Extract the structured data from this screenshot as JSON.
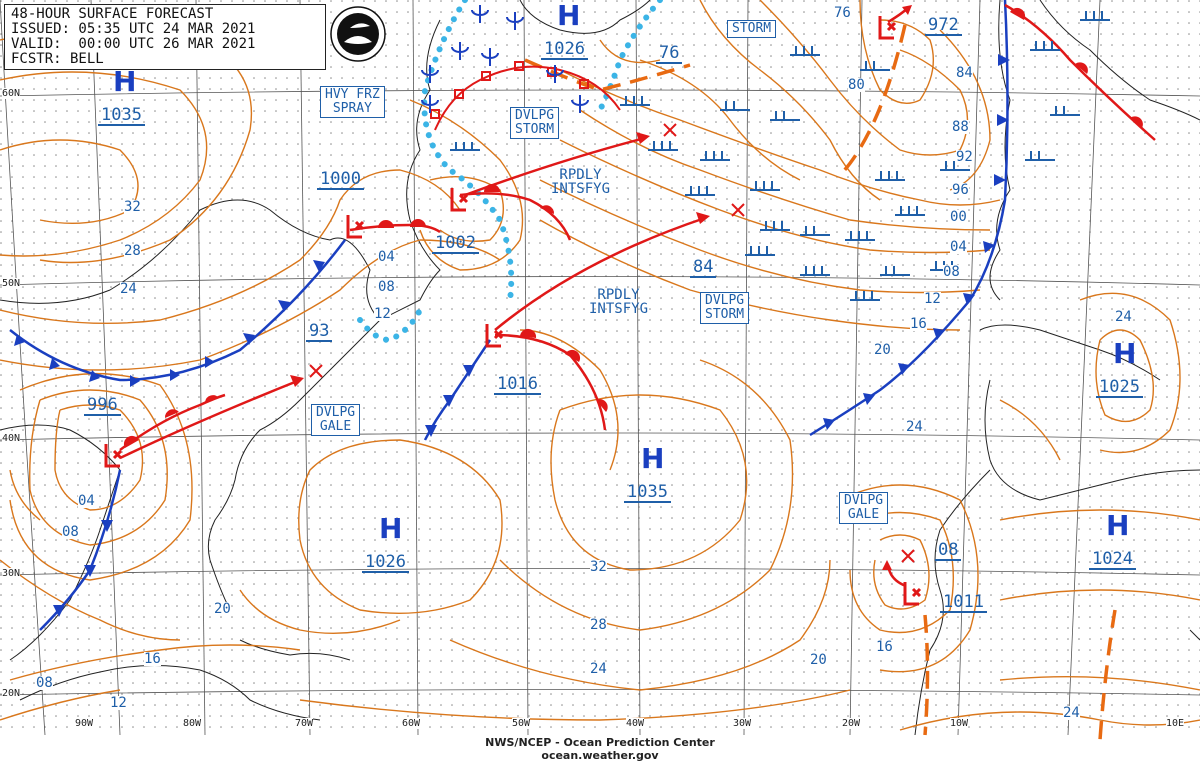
{
  "header": {
    "title": "48-HOUR SURFACE FORECAST",
    "issued": "ISSUED: 05:35 UTC 24 MAR 2021",
    "valid": "VALID:  00:00 UTC 26 MAR 2021",
    "forecaster": "FCSTR: BELL"
  },
  "logo_text": "NOAA",
  "colors": {
    "isobar": "#d9771c",
    "cold_front": "#1a3fc0",
    "warm_front": "#e01818",
    "label": "#1f5fa8",
    "ice": "#3bb4e6",
    "track": "#e01818"
  },
  "latitudes": [
    "60N",
    "50N",
    "40N",
    "30N",
    "20N"
  ],
  "longitudes": [
    "90W",
    "80W",
    "70W",
    "60W",
    "50W",
    "40W",
    "30W",
    "20W",
    "10W",
    "10E"
  ],
  "highs": [
    {
      "symbol": "H",
      "pressure": "1035"
    },
    {
      "symbol": "H",
      "pressure": "1026"
    },
    {
      "symbol": "H",
      "pressure": "1026"
    },
    {
      "symbol": "H",
      "pressure": "1035"
    },
    {
      "symbol": "H",
      "pressure": "1025"
    },
    {
      "symbol": "H",
      "pressure": "1024"
    }
  ],
  "lows": [
    {
      "pressure": "1000"
    },
    {
      "pressure": "1002"
    },
    {
      "pressure": "996"
    },
    {
      "pressure": "1016"
    },
    {
      "pressure": "972"
    },
    {
      "pressure": "1011"
    }
  ],
  "other_pressures": [
    "76",
    "84",
    "93",
    "08"
  ],
  "warnings": [
    {
      "line1": "HVY FRZ",
      "line2": "SPRAY"
    },
    {
      "line1": "DVLPG",
      "line2": "STORM"
    },
    {
      "line1": "STORM",
      "line2": ""
    },
    {
      "line1": "DVLPG",
      "line2": "STORM"
    },
    {
      "line1": "DVLPG",
      "line2": "GALE"
    },
    {
      "line1": "DVLPG",
      "line2": "GALE"
    }
  ],
  "annotations": [
    {
      "line1": "RPDLY",
      "line2": "INTSFYG"
    },
    {
      "line1": "RPDLY",
      "line2": "INTSFYG"
    }
  ],
  "isobar_labels": [
    "32",
    "28",
    "24",
    "04",
    "08",
    "12",
    "04",
    "08",
    "24",
    "20",
    "16",
    "12",
    "08",
    "04",
    "00",
    "96",
    "92",
    "88",
    "84",
    "80",
    "76",
    "24",
    "20",
    "16",
    "32",
    "28",
    "24",
    "20",
    "16",
    "08",
    "12",
    "24"
  ],
  "footer": {
    "line1": "NWS/NCEP - Ocean Prediction Center",
    "line2": "ocean.weather.gov"
  }
}
